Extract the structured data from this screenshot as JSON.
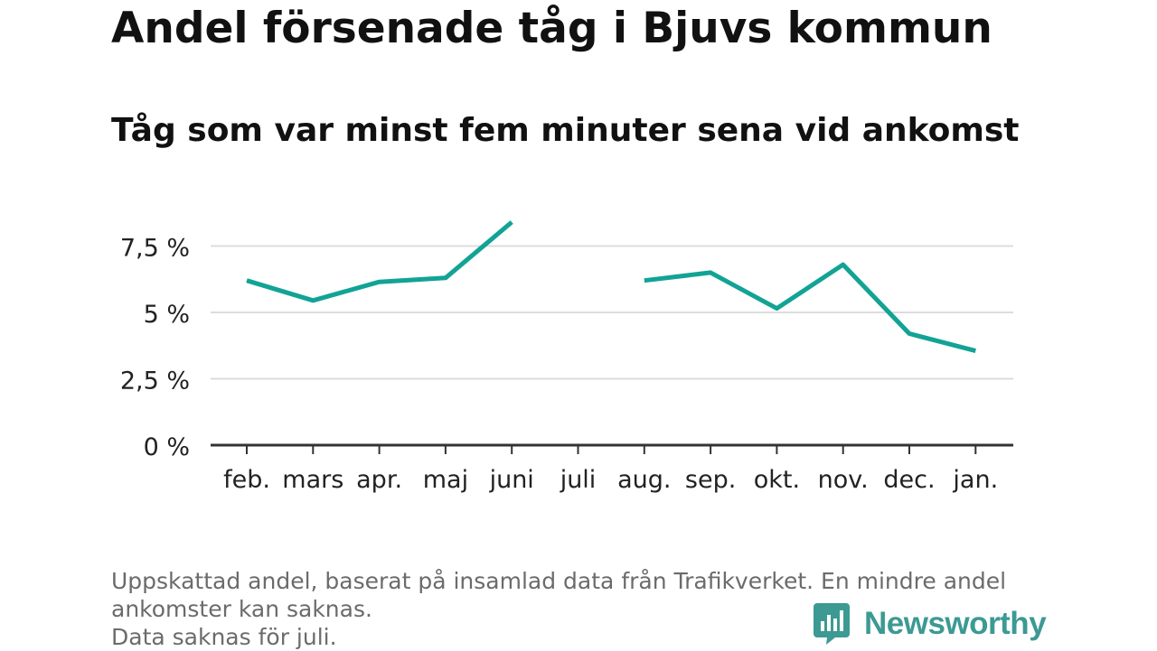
{
  "chart_data": {
    "type": "line",
    "title": "Andel försenade tåg i Bjuvs kommun",
    "subtitle": "Tåg som var minst fem minuter sena vid ankomst",
    "categories": [
      "feb.",
      "mars",
      "apr.",
      "maj",
      "juni",
      "juli",
      "aug.",
      "sep.",
      "okt.",
      "nov.",
      "dec.",
      "jan."
    ],
    "series": [
      {
        "values": [
          6.2,
          5.45,
          6.15,
          6.3,
          8.4,
          null,
          6.2,
          6.5,
          5.15,
          6.8,
          4.2,
          3.55
        ]
      }
    ],
    "yticks": [
      0,
      2.5,
      5,
      7.5
    ],
    "ytick_labels": [
      "0 %",
      "2,5 %",
      "5 %",
      "7,5 %"
    ],
    "ylim": [
      0,
      8.5
    ],
    "xlabel": "",
    "ylabel": "",
    "grid": true,
    "line_color": "#12a395"
  },
  "footnote": {
    "line1": "Uppskattad andel, baserat på insamlad data från Trafikverket. En mindre andel",
    "line2": "ankomster kan saknas.",
    "line3": "Data saknas för juli."
  },
  "brand": {
    "name": "Newsworthy",
    "icon": "newsworthy-logo-icon",
    "color": "#3c9a93"
  }
}
